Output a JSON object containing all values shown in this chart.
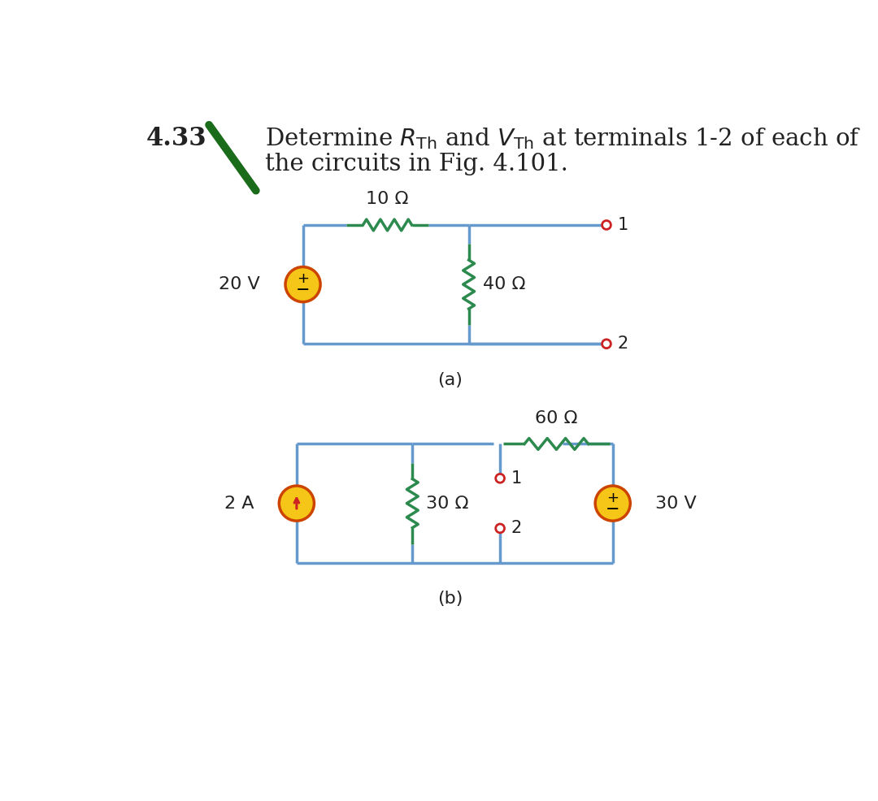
{
  "bg_color": "#ffffff",
  "wire_color": "#6699cc",
  "resistor_color": "#2d8a4e",
  "source_fill": "#f5c518",
  "source_outline": "#cc4400",
  "terminal_color": "#cc2222",
  "text_color": "#222222",
  "green_line_color": "#1a6b1a",
  "circuit_a": {
    "label": "(a)",
    "voltage_source": "20 V",
    "resistor1_label": "10 Ω",
    "resistor2_label": "40 Ω"
  },
  "circuit_b": {
    "label": "(b)",
    "current_source": "2 A",
    "resistor1_label": "30 Ω",
    "resistor2_label": "60 Ω",
    "voltage_source": "30 V"
  }
}
